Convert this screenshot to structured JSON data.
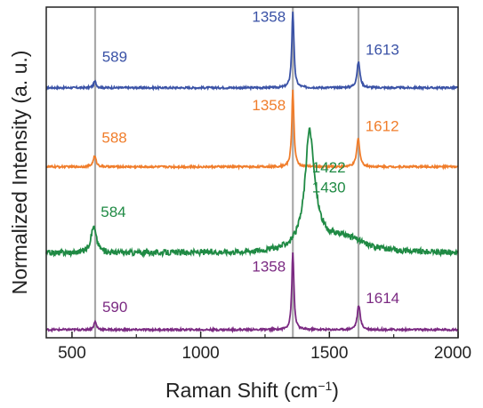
{
  "chart_data": {
    "type": "line",
    "xlabel": "Raman Shift (cm",
    "xlabel_superscript": "−1",
    "xlabel_suffix": ")",
    "ylabel": "Normalized Intensity (a. u.)",
    "xlim": [
      400,
      2000
    ],
    "x_ticks": [
      500,
      1000,
      1500,
      2000
    ],
    "x_tick_labels": [
      "500",
      "1000",
      "1500",
      "2000"
    ],
    "y_ticks_labeled": false,
    "grid": false,
    "reference_lines": [
      590,
      1358,
      1613
    ],
    "reference_line_color": "#a9a9a9",
    "series": [
      {
        "color": "#3a52a6",
        "baseline": 3.0,
        "noise": 0.012,
        "peaks": [
          {
            "x": 589,
            "height": 0.08,
            "width": 6
          },
          {
            "x": 1358,
            "height": 0.95,
            "width": 5
          },
          {
            "x": 1613,
            "height": 0.32,
            "width": 7
          }
        ],
        "labels": [
          {
            "text": "589",
            "x": 589,
            "y": 3.32
          },
          {
            "text": "1358",
            "x": 1358,
            "y": 3.82
          },
          {
            "text": "1613",
            "x": 1613,
            "y": 3.41
          }
        ]
      },
      {
        "color": "#f07d2b",
        "baseline": 2.02,
        "noise": 0.012,
        "peaks": [
          {
            "x": 588,
            "height": 0.13,
            "width": 7
          },
          {
            "x": 1358,
            "height": 0.95,
            "width": 5
          },
          {
            "x": 1612,
            "height": 0.35,
            "width": 7
          }
        ],
        "labels": [
          {
            "text": "588",
            "x": 588,
            "y": 2.32
          },
          {
            "text": "1358",
            "x": 1358,
            "y": 2.72
          },
          {
            "text": "1612",
            "x": 1612,
            "y": 2.46
          }
        ]
      },
      {
        "color": "#1f8a44",
        "baseline": 0.95,
        "noise": 0.035,
        "peaks": [
          {
            "x": 584,
            "height": 0.32,
            "width": 13
          },
          {
            "x": 1422,
            "height": 0.95,
            "width": 18
          },
          {
            "x": 1430,
            "height": 0.55,
            "width": 35
          },
          {
            "x": 1560,
            "height": 0.18,
            "width": 90
          }
        ],
        "labels": [
          {
            "text": "584",
            "x": 584,
            "y": 1.4
          },
          {
            "text": "1422",
            "x": 1422,
            "y": 1.95
          },
          {
            "text": "1430",
            "x": 1430,
            "y": 1.7
          }
        ]
      },
      {
        "color": "#7b2a82",
        "baseline": 0.0,
        "noise": 0.012,
        "peaks": [
          {
            "x": 590,
            "height": 0.1,
            "width": 6
          },
          {
            "x": 1358,
            "height": 0.95,
            "width": 5
          },
          {
            "x": 1614,
            "height": 0.3,
            "width": 7
          }
        ],
        "labels": [
          {
            "text": "590",
            "x": 590,
            "y": 0.22
          },
          {
            "text": "1358",
            "x": 1358,
            "y": 0.72
          },
          {
            "text": "1614",
            "x": 1614,
            "y": 0.33
          }
        ]
      }
    ]
  }
}
